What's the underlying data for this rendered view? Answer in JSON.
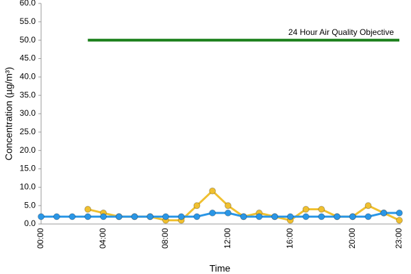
{
  "chart_data": {
    "type": "line",
    "x_label": "Time",
    "y_label": "Concentration (µg/m³)",
    "annotation": "24 Hour Air Quality Objective",
    "categories": [
      "00:00",
      null,
      null,
      null,
      "04:00",
      null,
      null,
      null,
      "08:00",
      null,
      null,
      null,
      "12:00",
      null,
      null,
      null,
      "16:00",
      null,
      null,
      null,
      "20:00",
      null,
      null,
      "23:00"
    ],
    "series": [
      {
        "color": "#1a7f1a",
        "marker": false,
        "values": [
          null,
          null,
          null,
          50,
          50,
          50,
          50,
          50,
          50,
          50,
          50,
          50,
          50,
          50,
          50,
          50,
          50,
          50,
          50,
          50,
          50,
          50,
          50,
          50
        ]
      },
      {
        "color": "#f0c030",
        "marker": true,
        "values": [
          null,
          null,
          null,
          4,
          3,
          2,
          2,
          2,
          1,
          1,
          5,
          9,
          5,
          2,
          3,
          2,
          1,
          4,
          4,
          2,
          2,
          5,
          3,
          1
        ]
      },
      {
        "color": "#2a96e6",
        "marker": true,
        "values": [
          2,
          2,
          2,
          2,
          2,
          2,
          2,
          2,
          2,
          2,
          2,
          3,
          3,
          2,
          2,
          2,
          2,
          2,
          2,
          2,
          2,
          2,
          3,
          3
        ]
      }
    ],
    "ylim": [
      0,
      60
    ],
    "yticks": [
      {
        "value": 0,
        "label": "0.0"
      },
      {
        "value": 5,
        "label": "5.0"
      },
      {
        "value": 10,
        "label": "10.0"
      },
      {
        "value": 15,
        "label": "15.0"
      },
      {
        "value": 20,
        "label": "20.0"
      },
      {
        "value": 25,
        "label": "25.0"
      },
      {
        "value": 30,
        "label": "30.0"
      },
      {
        "value": 35,
        "label": "35.0"
      },
      {
        "value": 40,
        "label": "40.0"
      },
      {
        "value": 45,
        "label": "45.0"
      },
      {
        "value": 50,
        "label": "50.0"
      },
      {
        "value": 55,
        "label": "55.0"
      },
      {
        "value": 60,
        "label": "60.0"
      }
    ]
  }
}
